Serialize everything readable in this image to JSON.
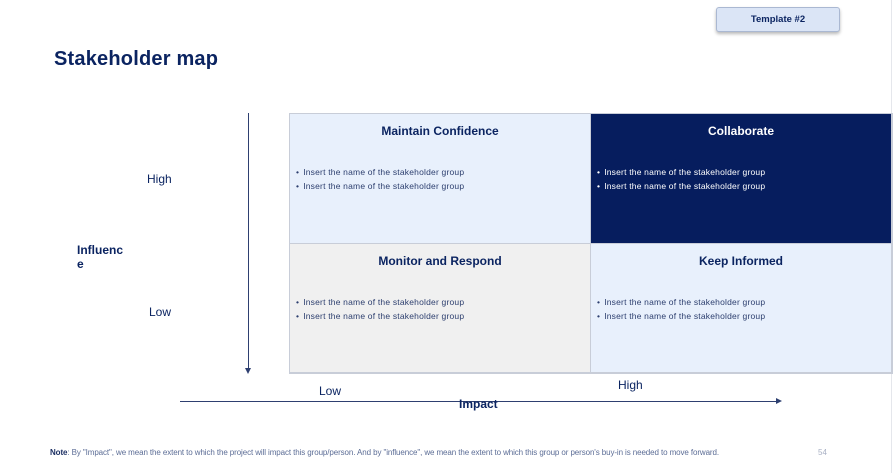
{
  "template_badge": "Template #2",
  "title": "Stakeholder map",
  "axes": {
    "influence_label": "Influence",
    "influence_high": "High",
    "influence_low": "Low",
    "impact_label": "Impact",
    "impact_low": "Low",
    "impact_high": "High"
  },
  "quadrants": {
    "top_left": {
      "title": "Maintain Confidence",
      "items": [
        "Insert the name of the stakeholder group",
        "Insert the name of the stakeholder group"
      ]
    },
    "top_right": {
      "title": "Collaborate",
      "items": [
        "Insert the name of the stakeholder group",
        "Insert the name of the stakeholder group"
      ]
    },
    "bottom_left": {
      "title": "Monitor and Respond",
      "items": [
        "Insert the name of the stakeholder group",
        "Insert the name of the stakeholder group"
      ]
    },
    "bottom_right": {
      "title": "Keep Informed",
      "items": [
        "Insert the name of the stakeholder group",
        "Insert the name of the stakeholder group"
      ]
    }
  },
  "footnote": {
    "label": "Note",
    "text": ": By \"Impact\", we mean the extent to which the project will impact this group/person. And by \"influence\", we mean the extent to which this group or person's buy-in is needed to move forward."
  },
  "page_number": "54",
  "colors": {
    "navy": "#0b2461",
    "dark_quadrant": "#061d5e",
    "light_quadrant": "#e8f0fc",
    "grey_quadrant": "#f0f0f0",
    "badge": "#dbe5f6"
  }
}
